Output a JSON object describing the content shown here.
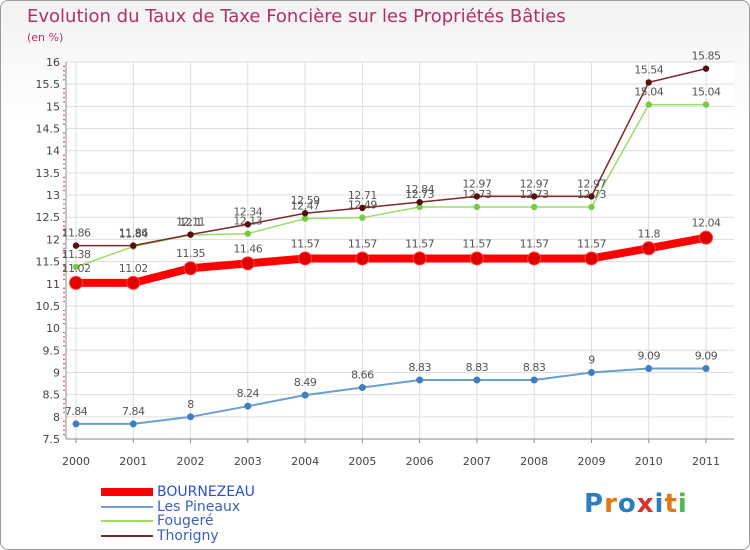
{
  "chart_data": {
    "type": "line",
    "title": "Evolution du Taux de Taxe Foncière sur les Propriétés Bâties",
    "subtitle": "(en %)",
    "categories": [
      "2000",
      "2001",
      "2002",
      "2003",
      "2004",
      "2005",
      "2006",
      "2007",
      "2008",
      "2009",
      "2010",
      "2011"
    ],
    "ylim": [
      7.5,
      16
    ],
    "yticks": [
      "7.5",
      "8",
      "8.5",
      "9",
      "9.5",
      "10",
      "10.5",
      "11",
      "11.5",
      "12",
      "12.5",
      "13",
      "13.5",
      "14",
      "14.5",
      "15",
      "15.5",
      "16"
    ],
    "grid": true,
    "series": [
      {
        "name": "BOURNEZEAU",
        "color": "#ff0000",
        "marker": "#e00000",
        "values": [
          11.02,
          11.02,
          11.35,
          11.46,
          11.57,
          11.57,
          11.57,
          11.57,
          11.57,
          11.57,
          11.8,
          12.04
        ],
        "labels": [
          "11.02",
          "11.02",
          "11.35",
          "11.46",
          "11.57",
          "11.57",
          "11.57",
          "11.57",
          "11.57",
          "11.57",
          "11.8",
          "12.04"
        ]
      },
      {
        "name": "Les Pineaux",
        "color": "#6b9fcf",
        "marker": "#3f7fbf",
        "values": [
          7.84,
          7.84,
          8,
          8.24,
          8.49,
          8.66,
          8.83,
          8.83,
          8.83,
          9,
          9.09,
          9.09
        ],
        "labels": [
          "7.84",
          "7.84",
          "8",
          "8.24",
          "8.49",
          "8.66",
          "8.83",
          "8.83",
          "8.83",
          "9",
          "9.09",
          "9.09"
        ]
      },
      {
        "name": "Fougeré",
        "color": "#99dd66",
        "marker": "#77cc44",
        "values": [
          11.38,
          11.84,
          12.1,
          12.13,
          12.47,
          12.49,
          12.73,
          12.73,
          12.73,
          12.73,
          15.04,
          15.04
        ],
        "labels": [
          "11.38",
          "11.84",
          "12.1",
          "12.13",
          "12.47",
          "12.49",
          "12.73",
          "12.73",
          "12.73",
          "12.73",
          "15.04",
          "15.04"
        ]
      },
      {
        "name": "Thorigny",
        "color": "#7a2a2a",
        "marker": "#551111",
        "values": [
          11.86,
          11.86,
          12.11,
          12.34,
          12.59,
          12.71,
          12.84,
          12.97,
          12.97,
          12.97,
          15.54,
          15.85
        ],
        "labels": [
          "11.86",
          "11.86",
          "12.11",
          "12.34",
          "12.59",
          "12.71",
          "12.84",
          "12.97",
          "12.97",
          "12.97",
          "15.54",
          "15.85"
        ]
      }
    ]
  },
  "logo": {
    "letters": [
      "P",
      "r",
      "o",
      "x",
      "i",
      "t",
      "i"
    ],
    "colors": [
      "#2a7fc0",
      "#e07a18",
      "#2a7fc0",
      "#d8322b",
      "#2a7fc0",
      "#e07a18",
      "#52b848"
    ]
  }
}
